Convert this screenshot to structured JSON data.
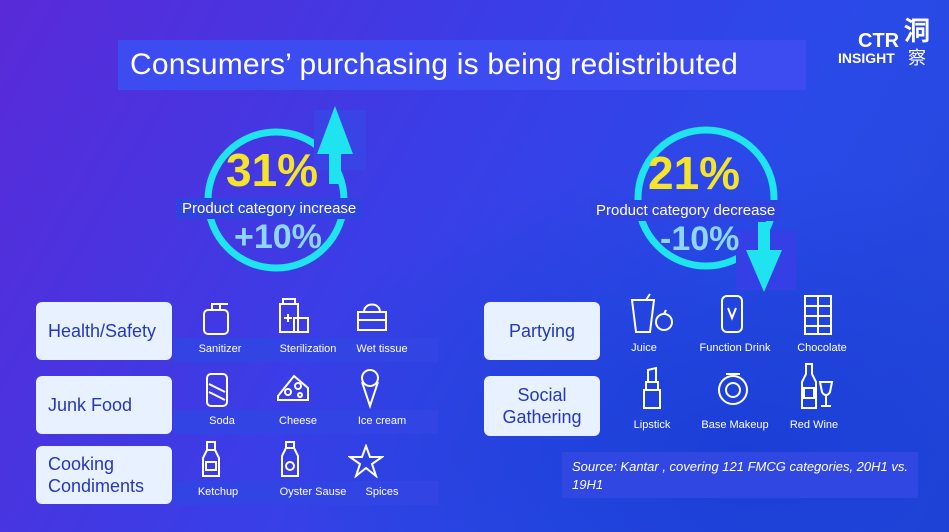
{
  "title": "Consumers’ purchasing is being redistributed",
  "logo": {
    "line1": "CTR",
    "line2": "INSIGHT",
    "cn1": "洞",
    "cn2": "察"
  },
  "increase": {
    "pct": "31%",
    "caption": "Product category increase",
    "change": "+10%"
  },
  "decrease": {
    "pct": "21%",
    "caption": "Product category decrease",
    "change": "-10%"
  },
  "left_groups": [
    {
      "label": "Health/Safety",
      "items": [
        "Sanitizer",
        "Sterilization",
        "Wet tissue"
      ]
    },
    {
      "label": "Junk Food",
      "items": [
        "Soda",
        "Cheese",
        "Ice cream"
      ]
    },
    {
      "label": "Cooking Condiments",
      "items": [
        "Ketchup",
        "Oyster Sause",
        "Spices"
      ]
    }
  ],
  "right_groups": [
    {
      "label": "Partying",
      "items": [
        "Juice",
        "Function Drink",
        "Chocolate"
      ]
    },
    {
      "label": "Social Gathering",
      "items": [
        "Lipstick",
        "Base Makeup",
        "Red Wine"
      ]
    }
  ],
  "source": "Source: Kantar , covering 121 FMCG categories, 20H1 vs. 19H1",
  "colors": {
    "yellow": "#f4e52a",
    "cyan": "#1fe3ee",
    "pill_bg": "#2f43e0",
    "card_bg": "#e8f1ff"
  }
}
